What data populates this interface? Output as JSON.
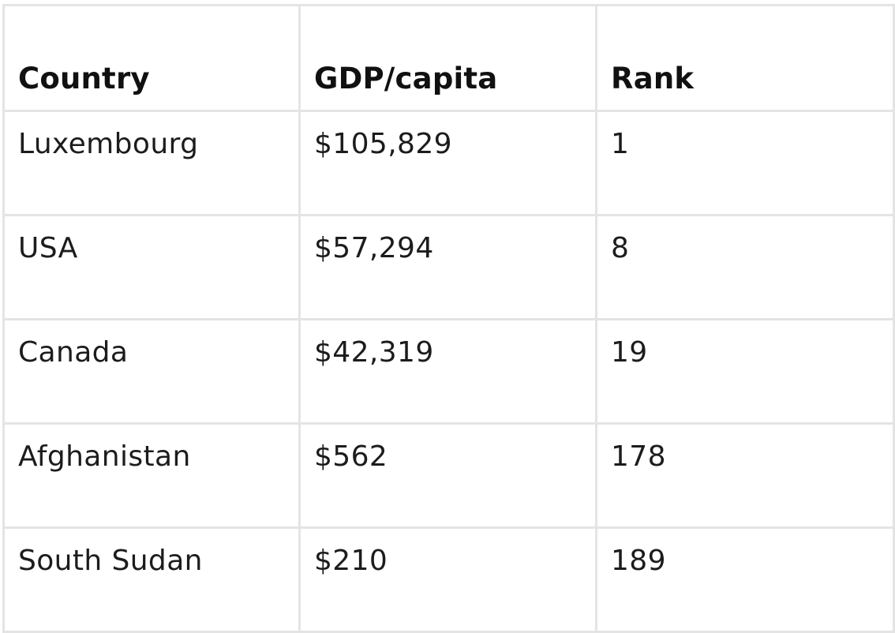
{
  "table": {
    "headers": [
      "Country",
      "GDP/capita",
      "Rank"
    ],
    "rows": [
      [
        "Luxembourg",
        "$105,829",
        "1"
      ],
      [
        "USA",
        "$57,294",
        "8"
      ],
      [
        "Canada",
        "$42,319",
        "19"
      ],
      [
        "Afghanistan",
        "$562",
        "178"
      ],
      [
        "South Sudan",
        "$210",
        "189"
      ]
    ]
  }
}
